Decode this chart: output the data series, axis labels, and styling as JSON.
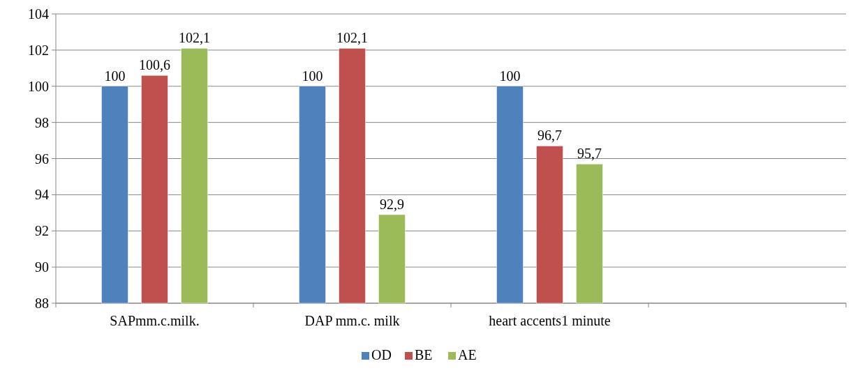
{
  "chart_data": {
    "type": "bar",
    "categories": [
      "SAPmm.c.milk.",
      "DAP mm.c. milk",
      "heart accents1 minute",
      null
    ],
    "series": [
      {
        "name": "OD",
        "color": "#4f81bd",
        "values": [
          100,
          100,
          100,
          null
        ],
        "value_labels": [
          "100",
          "100",
          "100",
          null
        ]
      },
      {
        "name": "BE",
        "color": "#c0504d",
        "values": [
          100.6,
          102.1,
          96.7,
          null
        ],
        "value_labels": [
          "100,6",
          "102,1",
          "96,7",
          null
        ]
      },
      {
        "name": "AE",
        "color": "#9bbb59",
        "values": [
          102.1,
          92.9,
          95.7,
          null
        ],
        "value_labels": [
          "102,1",
          "92,9",
          "95,7",
          null
        ]
      }
    ],
    "ylim": [
      88,
      104
    ],
    "yticks": [
      88,
      90,
      92,
      94,
      96,
      98,
      100,
      102,
      104
    ],
    "grid": "y",
    "legend": "bottom"
  }
}
